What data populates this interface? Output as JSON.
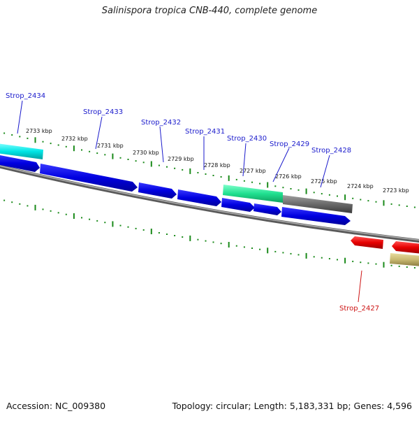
{
  "title": "Salinispora tropica CNB-440, complete genome",
  "footer": {
    "accession": "Accession: NC_009380",
    "summary": "Topology: circular; Length: 5,183,331 bp; Genes: 4,596"
  },
  "ticks": [
    "2733 kbp",
    "2732 kbp",
    "2731 kbp",
    "2730 kbp",
    "2729 kbp",
    "2728 kbp",
    "2727 kbp",
    "2726 kbp",
    "2725 kbp",
    "2724 kbp",
    "2723 kbp"
  ],
  "gene_labels_top": [
    "Strop_2434",
    "Strop_2433",
    "Strop_2432",
    "Strop_2431",
    "Strop_2430",
    "Strop_2429",
    "Strop_2428"
  ],
  "gene_labels_bottom": [
    "Strop_2427"
  ],
  "colors": {
    "cds": "#0000e6",
    "rrna_cyan": "#00e5e5",
    "rrna_green": "#20e090",
    "gray_feature": "#6a6a6a",
    "reverse_cds": "#e60000",
    "tan_feature": "#c8b870",
    "label_forward": "#1a1acc",
    "label_reverse": "#cc1111",
    "tick": "#1a8a1a",
    "backbone": "#888888"
  }
}
